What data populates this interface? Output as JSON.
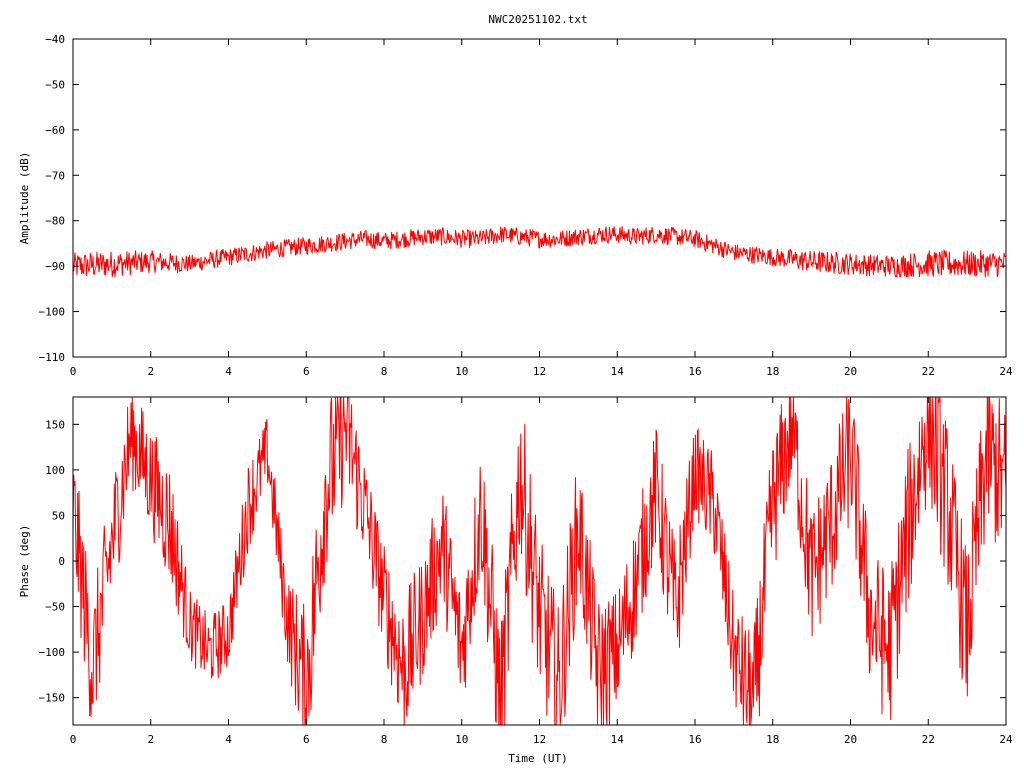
{
  "title": "NWC20251102.txt",
  "trace_color": "#ff0000",
  "chart_data": [
    {
      "type": "line",
      "name": "amplitude",
      "xlabel": "",
      "ylabel": "Amplitude (dB)",
      "xlim": [
        0,
        24
      ],
      "ylim": [
        -110,
        -40
      ],
      "xticks": [
        0,
        2,
        4,
        6,
        8,
        10,
        12,
        14,
        16,
        18,
        20,
        22,
        24
      ],
      "yticks": [
        -110,
        -100,
        -90,
        -80,
        -70,
        -60,
        -50,
        -40
      ],
      "grid": false,
      "legend": "none",
      "series": [
        {
          "x": [
            0,
            1,
            2,
            3,
            4,
            5,
            6,
            7,
            7.5,
            8,
            8.5,
            9,
            9.5,
            10,
            10.5,
            11,
            11.5,
            12,
            12.5,
            13,
            13.5,
            14,
            14.5,
            15,
            15.5,
            16,
            16.5,
            17,
            18,
            19,
            20,
            21,
            22,
            23,
            24
          ],
          "mean": [
            -90,
            -89.5,
            -89,
            -89.5,
            -88,
            -86.5,
            -85.5,
            -84.5,
            -84,
            -84.5,
            -84,
            -83.5,
            -83.5,
            -84,
            -84,
            -83,
            -83.5,
            -84,
            -84,
            -83.5,
            -83,
            -83,
            -83.5,
            -83,
            -83.5,
            -84,
            -85.5,
            -87,
            -88,
            -89,
            -89.5,
            -90,
            -89.5,
            -89.5,
            -89.5
          ],
          "spread": [
            3,
            3,
            2.5,
            2,
            2,
            2,
            2,
            2,
            2,
            2,
            2,
            2,
            2,
            2,
            2,
            2,
            2,
            2,
            2,
            2,
            2,
            2,
            2,
            2,
            2,
            2,
            2,
            2,
            2,
            2.5,
            2.5,
            2.5,
            3,
            3,
            3
          ]
        }
      ]
    },
    {
      "type": "line",
      "name": "phase",
      "xlabel": "Time (UT)",
      "ylabel": "Phase (deg)",
      "xlim": [
        0,
        24
      ],
      "ylim": [
        -180,
        180
      ],
      "xticks": [
        0,
        2,
        4,
        6,
        8,
        10,
        12,
        14,
        16,
        18,
        20,
        22,
        24
      ],
      "yticks": [
        -150,
        -100,
        -50,
        0,
        50,
        100,
        150
      ],
      "grid": false,
      "legend": "none",
      "series": [
        {
          "x": [
            0,
            0.5,
            1,
            1.5,
            2,
            2.5,
            3,
            3.5,
            4,
            4.5,
            5,
            5.5,
            6,
            6.5,
            7,
            7.5,
            8,
            8.5,
            9,
            9.5,
            10,
            10.5,
            11,
            11.5,
            12,
            12.5,
            13,
            13.5,
            14,
            14.5,
            15,
            15.5,
            16,
            16.5,
            17,
            17.5,
            18,
            18.5,
            19,
            19.5,
            20,
            20.5,
            21,
            21.5,
            22,
            22.5,
            23,
            23.5,
            24
          ],
          "y": [
            60,
            -120,
            20,
            140,
            90,
            40,
            -70,
            -100,
            -80,
            60,
            120,
            -60,
            -140,
            80,
            150,
            60,
            -40,
            -120,
            -60,
            20,
            -100,
            60,
            -160,
            100,
            -60,
            -140,
            40,
            -120,
            -100,
            -20,
            80,
            -60,
            100,
            60,
            -100,
            -160,
            60,
            150,
            -20,
            40,
            120,
            -60,
            -100,
            40,
            160,
            60,
            -80,
            120,
            80
          ],
          "spread": [
            70,
            80,
            70,
            60,
            60,
            70,
            40,
            40,
            40,
            50,
            40,
            50,
            90,
            90,
            80,
            60,
            60,
            80,
            70,
            70,
            70,
            80,
            90,
            90,
            90,
            90,
            80,
            80,
            70,
            70,
            70,
            80,
            50,
            60,
            60,
            80,
            80,
            70,
            80,
            80,
            80,
            80,
            90,
            90,
            90,
            90,
            90,
            90,
            90
          ]
        }
      ]
    }
  ]
}
